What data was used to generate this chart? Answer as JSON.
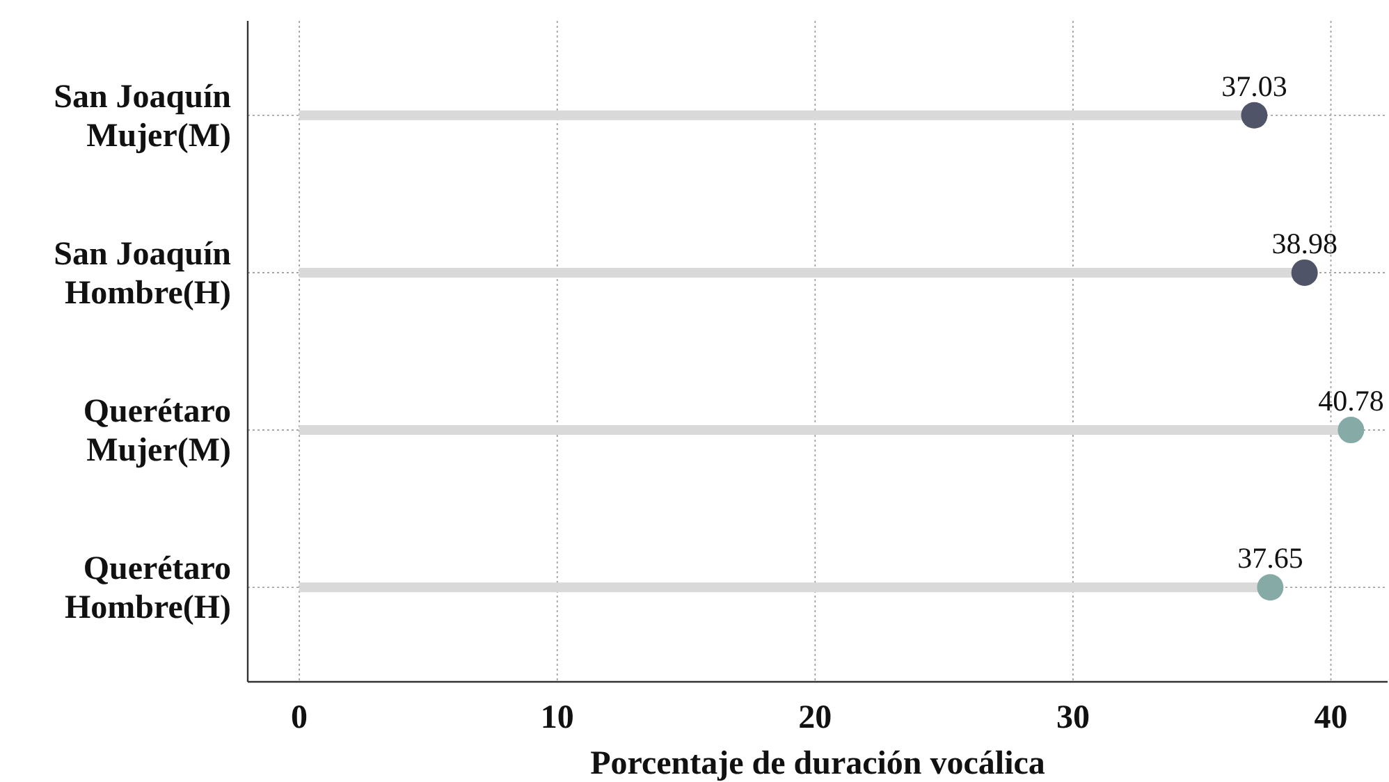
{
  "chart_data": {
    "type": "lollipop",
    "orientation": "horizontal",
    "xlabel": "Porcentaje de duración vocálica",
    "categories": [
      "San Joaquín\nMujer(M)",
      "San Joaquín\nHombre(H)",
      "Querétaro\nMujer(M)",
      "Querétaro\nHombre(H)"
    ],
    "values": [
      37.03,
      38.98,
      40.78,
      37.65
    ],
    "colors": [
      "#4f5468",
      "#4f5468",
      "#86aaa6",
      "#86aaa6"
    ],
    "data_labels": true,
    "xlim": [
      -2,
      42.2
    ],
    "xticks": [
      0,
      10,
      20,
      30,
      40
    ],
    "grid": true,
    "marker": "circle"
  }
}
